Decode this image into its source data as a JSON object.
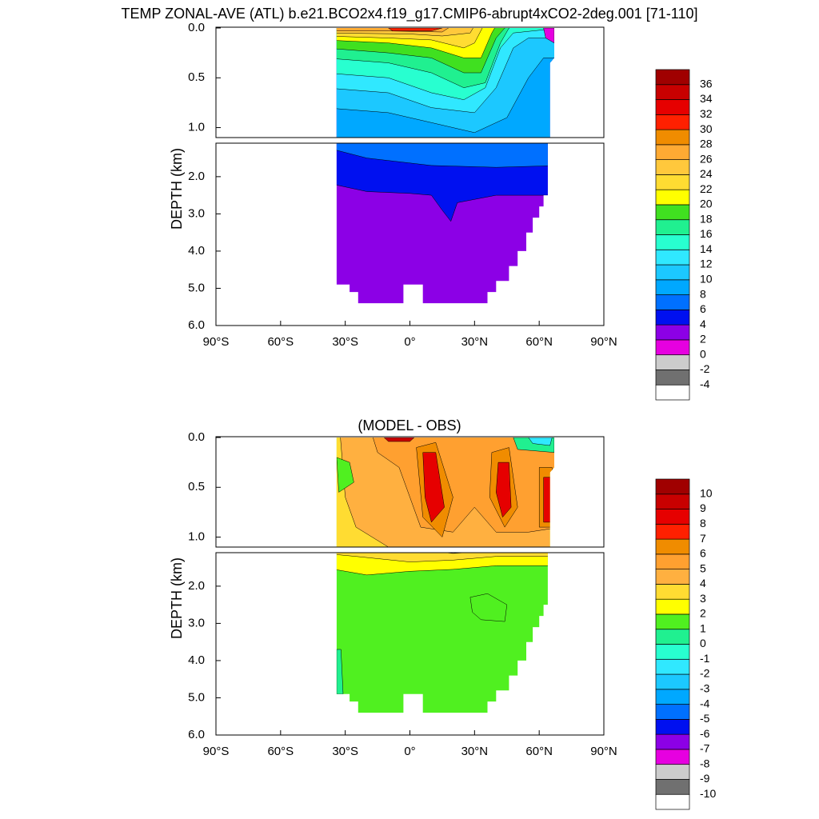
{
  "chart_data": [
    {
      "type": "contour",
      "title": "TEMP ZONAL-AVE (ATL) b.e21.BCO2x4.f19_g17.CMIP6-abrupt4xCO2-2deg.001 [71-110]",
      "ylabel": "DEPTH (km)",
      "xlim": [
        -90,
        90
      ],
      "xticks": [
        {
          "value": -90,
          "label": "90°S"
        },
        {
          "value": -60,
          "label": "60°S"
        },
        {
          "value": -30,
          "label": "30°S"
        },
        {
          "value": 0,
          "label": "0°"
        },
        {
          "value": 30,
          "label": "30°N"
        },
        {
          "value": 60,
          "label": "60°N"
        },
        {
          "value": 90,
          "label": "90°N"
        }
      ],
      "ylim": [
        0,
        6
      ],
      "yticks": [
        {
          "value": 0,
          "label": "0.0"
        },
        {
          "value": 0.5,
          "label": "0.5"
        },
        {
          "value": 1,
          "label": "1.0"
        },
        {
          "value": 2,
          "label": "2.0"
        },
        {
          "value": 3,
          "label": "3.0"
        },
        {
          "value": 4,
          "label": "4.0"
        },
        {
          "value": 5,
          "label": "5.0"
        },
        {
          "value": 6,
          "label": "6.0"
        }
      ],
      "colorbar": {
        "levels": [
          -4,
          -2,
          0,
          2,
          4,
          6,
          8,
          10,
          12,
          14,
          16,
          18,
          20,
          22,
          24,
          26,
          28,
          30,
          32,
          34,
          36
        ],
        "colors": [
          "#ffffff",
          "#707070",
          "#cccccc",
          "#e600e0",
          "#8c00e6",
          "#0010f0",
          "#0070ff",
          "#00a8ff",
          "#1cc8ff",
          "#30e8ff",
          "#28ffd0",
          "#20f090",
          "#40e020",
          "#ffff00",
          "#ffdc32",
          "#ffc83c",
          "#ffaa33",
          "#f08c00",
          "#ff2000",
          "#e60000",
          "#c80000",
          "#a00000"
        ]
      }
    },
    {
      "type": "contour",
      "title": "(MODEL - OBS)",
      "ylabel": "DEPTH (km)",
      "xlim": [
        -90,
        90
      ],
      "xticks": [
        {
          "value": -90,
          "label": "90°S"
        },
        {
          "value": -60,
          "label": "60°S"
        },
        {
          "value": -30,
          "label": "30°S"
        },
        {
          "value": 0,
          "label": "0°"
        },
        {
          "value": 30,
          "label": "30°N"
        },
        {
          "value": 60,
          "label": "60°N"
        },
        {
          "value": 90,
          "label": "90°N"
        }
      ],
      "ylim": [
        0,
        6
      ],
      "yticks": [
        {
          "value": 0,
          "label": "0.0"
        },
        {
          "value": 0.5,
          "label": "0.5"
        },
        {
          "value": 1,
          "label": "1.0"
        },
        {
          "value": 2,
          "label": "2.0"
        },
        {
          "value": 3,
          "label": "3.0"
        },
        {
          "value": 4,
          "label": "4.0"
        },
        {
          "value": 5,
          "label": "5.0"
        },
        {
          "value": 6,
          "label": "6.0"
        }
      ],
      "colorbar": {
        "levels": [
          -10,
          -9,
          -8,
          -7,
          -6,
          -5,
          -4,
          -3,
          -2,
          -1,
          0,
          1,
          2,
          3,
          4,
          5,
          6,
          7,
          8,
          9,
          10
        ],
        "colors": [
          "#ffffff",
          "#707070",
          "#cccccc",
          "#e600e0",
          "#8c00e6",
          "#0010f0",
          "#0070ff",
          "#00a8ff",
          "#1cc8ff",
          "#30e8ff",
          "#28ffd0",
          "#20f090",
          "#50f020",
          "#ffff00",
          "#ffdc32",
          "#ffb040",
          "#ffa030",
          "#f08c00",
          "#ff2000",
          "#e60000",
          "#c80000",
          "#a00000"
        ]
      }
    }
  ]
}
